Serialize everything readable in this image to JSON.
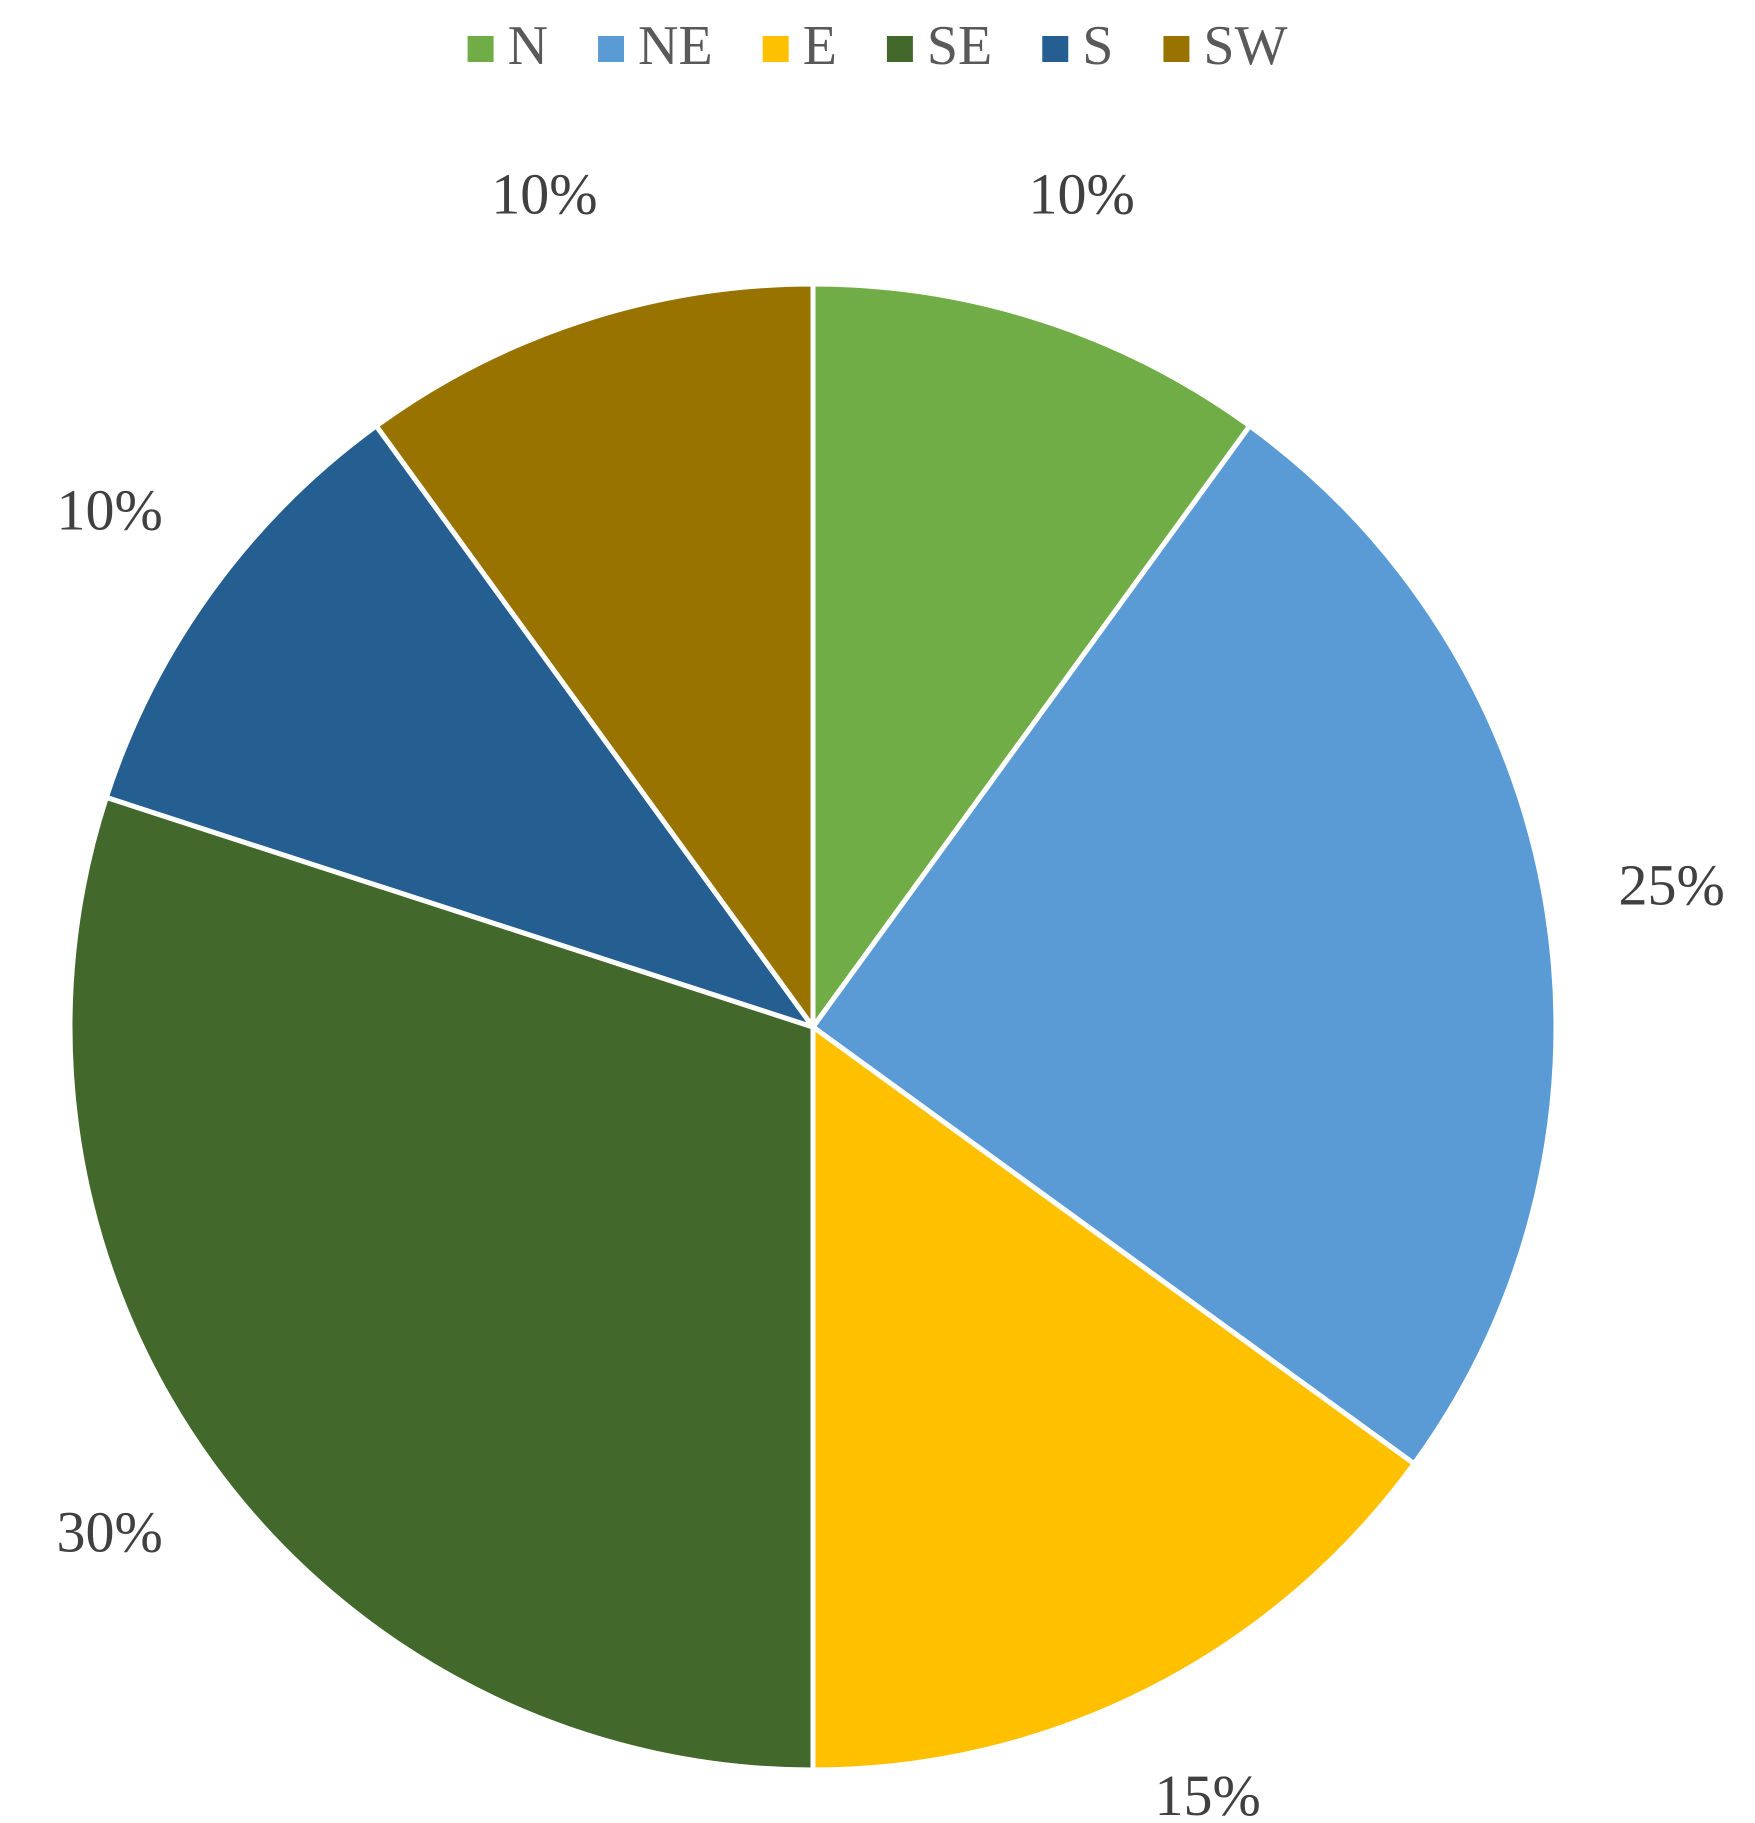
{
  "chart_data": {
    "type": "pie",
    "categories": [
      "N",
      "NE",
      "E",
      "SE",
      "S",
      "SW"
    ],
    "values": [
      10,
      25,
      15,
      30,
      10,
      10
    ],
    "value_labels": [
      "10%",
      "25%",
      "15%",
      "30%",
      "10%",
      "10%"
    ],
    "colors": [
      "#70ad47",
      "#5b9bd5",
      "#ffc000",
      "#43682b",
      "#255e91",
      "#997300"
    ],
    "legend": "top"
  }
}
